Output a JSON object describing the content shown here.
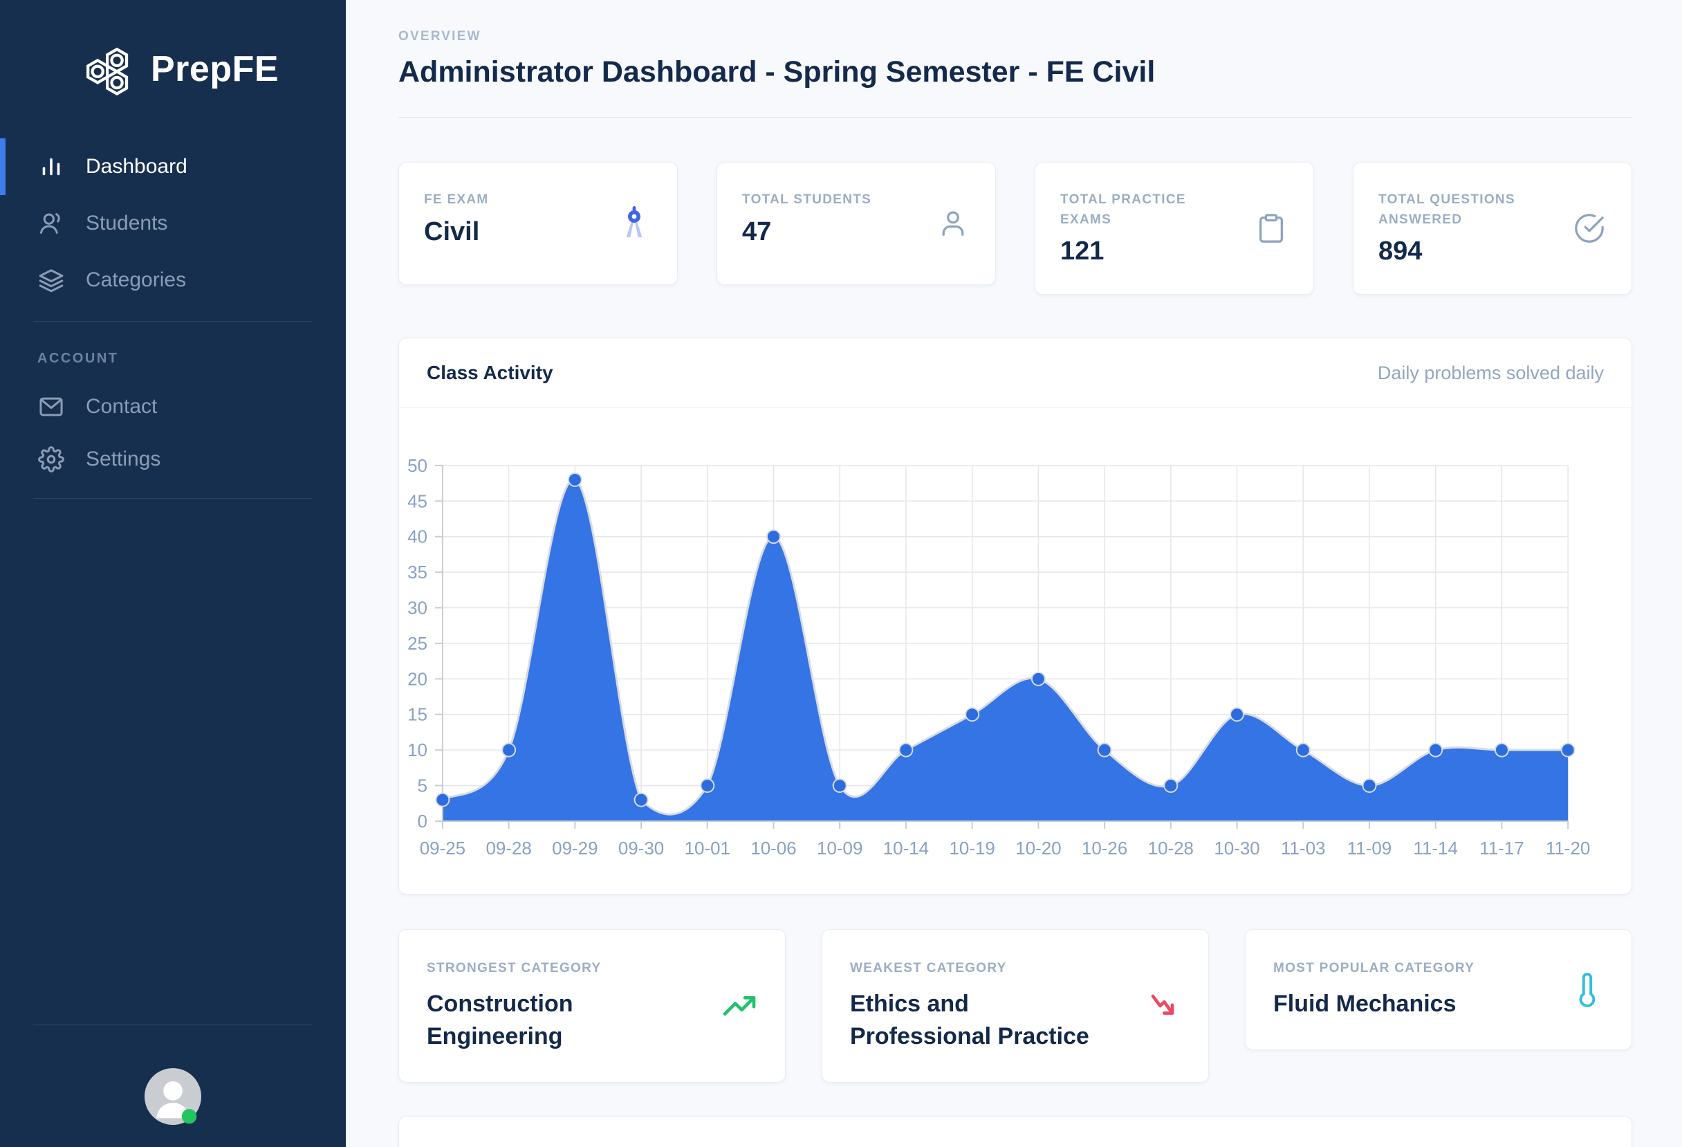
{
  "sidebar": {
    "brand": "PrepFE",
    "nav": [
      {
        "label": "Dashboard",
        "icon": "bar-chart-icon",
        "active": true
      },
      {
        "label": "Students",
        "icon": "users-icon",
        "active": false
      },
      {
        "label": "Categories",
        "icon": "layers-icon",
        "active": false
      }
    ],
    "section_label": "ACCOUNT",
    "account_nav": [
      {
        "label": "Contact",
        "icon": "mail-icon"
      },
      {
        "label": "Settings",
        "icon": "gear-icon"
      }
    ],
    "avatar_status": "online"
  },
  "header": {
    "eyebrow": "OVERVIEW",
    "title": "Administrator Dashboard - Spring Semester - FE Civil"
  },
  "stats": [
    {
      "label": "FE EXAM",
      "value": "Civil",
      "icon": "compass-icon"
    },
    {
      "label": "TOTAL STUDENTS",
      "value": "47",
      "icon": "user-icon"
    },
    {
      "label": "TOTAL PRACTICE\nEXAMS",
      "value": "121",
      "icon": "clipboard-icon"
    },
    {
      "label": "TOTAL QUESTIONS\nANSWERED",
      "value": "894",
      "icon": "check-circle-icon"
    }
  ],
  "chart_card": {
    "title": "Class Activity",
    "subtitle": "Daily problems solved daily"
  },
  "chart_data": {
    "type": "area",
    "title": "Class Activity",
    "x": [
      "09-25",
      "09-28",
      "09-29",
      "09-30",
      "10-01",
      "10-06",
      "10-09",
      "10-14",
      "10-19",
      "10-20",
      "10-26",
      "10-28",
      "10-30",
      "11-03",
      "11-09",
      "11-14",
      "11-17",
      "11-20"
    ],
    "values": [
      3,
      10,
      48,
      3,
      5,
      40,
      5,
      10,
      15,
      20,
      10,
      5,
      15,
      10,
      5,
      10,
      10,
      10
    ],
    "xlabel": "",
    "ylabel": "",
    "ylim": [
      0,
      50
    ],
    "y_tick_step": 5,
    "grid": true,
    "legend": "none",
    "fill_color": "#3474e5",
    "point_color": "#2d6cdf",
    "line_halo_color": "#d8dce1"
  },
  "categories": [
    {
      "label": "STRONGEST CATEGORY",
      "value": "Construction\nEngineering",
      "icon": "trending-up-icon",
      "icon_color": "#23c16d"
    },
    {
      "label": "WEAKEST CATEGORY",
      "value": "Ethics and\nProfessional Practice",
      "icon": "trending-down-icon",
      "icon_color": "#ee4961"
    },
    {
      "label": "MOST POPULAR CATEGORY",
      "value": "Fluid Mechanics",
      "icon": "thermometer-icon",
      "icon_color": "#35bede"
    }
  ],
  "colors": {
    "sidebar_bg": "#172f4f",
    "accent_blue": "#3f7cec",
    "chart_fill": "#3474e5",
    "positive": "#23c16d",
    "negative": "#ee4961",
    "info": "#35bede",
    "grid": "#e4e6e9",
    "axis": "#c9cdd3",
    "axis_label": "#8ba1c1",
    "online_dot": "#22c55e"
  }
}
